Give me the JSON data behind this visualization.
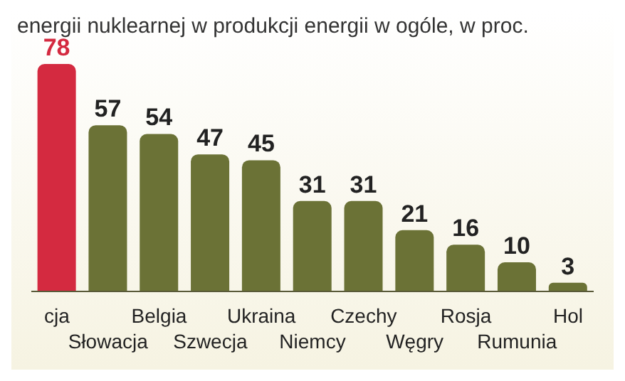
{
  "chart_data": {
    "type": "bar",
    "title": "energii nuklearnej w produkcji energii w ogóle, w proc.",
    "categories": [
      "cja",
      "Słowacja",
      "Belgia",
      "Szwecja",
      "Ukraina",
      "Niemcy",
      "Czechy",
      "Węgry",
      "Rosja",
      "Rumunia",
      "Hol"
    ],
    "values": [
      78,
      57,
      54,
      47,
      45,
      31,
      31,
      21,
      16,
      10,
      3
    ],
    "colors": [
      "#d42a40",
      "#6b7236",
      "#6b7236",
      "#6b7236",
      "#6b7236",
      "#6b7236",
      "#6b7236",
      "#6b7236",
      "#6b7236",
      "#6b7236",
      "#6b7236"
    ],
    "data_labels": true
  }
}
